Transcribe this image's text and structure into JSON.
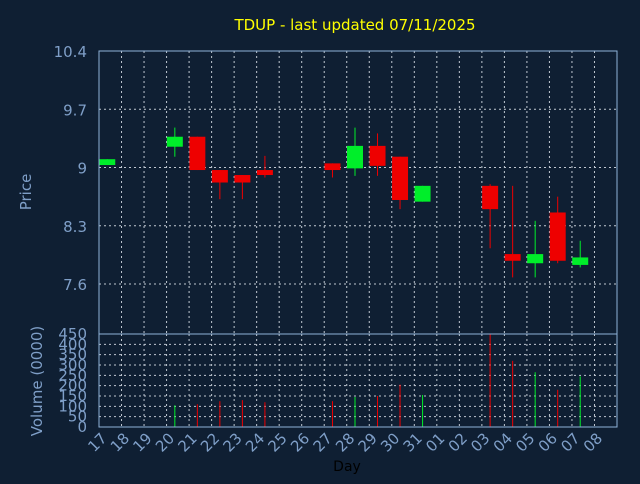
{
  "title": "TDUP - last updated 07/11/2025",
  "colors": {
    "background": "#0f1f33",
    "frame": "#8fb3d9",
    "grid": "#c0c8d2",
    "up": "#00ee2a",
    "down": "#ee0000",
    "title": "#ffff00",
    "axis_text": "#7f9fc8",
    "xlabel": "#000000"
  },
  "chart_data": {
    "type": "candlestick",
    "title": "TDUP - last updated 07/11/2025",
    "price_axis": {
      "label": "Price",
      "ylim": [
        7.0,
        10.4
      ],
      "ticks": [
        10.4,
        9.7,
        9,
        8.3,
        7.6
      ],
      "tick_labels": [
        "10.4",
        "9.7",
        "9",
        "8.3",
        "7.6"
      ]
    },
    "volume_axis": {
      "label": "Volume (0000)",
      "ylim": [
        0,
        450
      ],
      "ticks": [
        0,
        50,
        100,
        150,
        200,
        250,
        300,
        350,
        400,
        450
      ],
      "tick_labels": [
        "0",
        "50",
        "100",
        "150",
        "200",
        "250",
        "300",
        "350",
        "400",
        "450"
      ]
    },
    "x_axis": {
      "label": "Day",
      "tick_labels": [
        "17",
        "18",
        "19",
        "20",
        "21",
        "22",
        "23",
        "24",
        "25",
        "26",
        "27",
        "28",
        "29",
        "30",
        "31",
        "01",
        "02",
        "03",
        "04",
        "05",
        "06",
        "07",
        "08"
      ]
    },
    "candles": [
      {
        "day": "17",
        "open": 9.03,
        "close": 9.1,
        "high": 9.1,
        "low": 9.03,
        "volume": 0
      },
      {
        "day": "20",
        "open": 9.25,
        "close": 9.37,
        "high": 9.48,
        "low": 9.13,
        "volume": 105
      },
      {
        "day": "21",
        "open": 9.37,
        "close": 8.97,
        "high": 9.37,
        "low": 8.97,
        "volume": 110
      },
      {
        "day": "22",
        "open": 8.97,
        "close": 8.82,
        "high": 8.97,
        "low": 8.62,
        "volume": 125
      },
      {
        "day": "23",
        "open": 8.91,
        "close": 8.82,
        "high": 8.91,
        "low": 8.62,
        "volume": 130
      },
      {
        "day": "24",
        "open": 8.97,
        "close": 8.91,
        "high": 9.14,
        "low": 8.88,
        "volume": 120
      },
      {
        "day": "27",
        "open": 9.05,
        "close": 8.97,
        "high": 9.05,
        "low": 8.88,
        "volume": 125
      },
      {
        "day": "28",
        "open": 8.99,
        "close": 9.26,
        "high": 9.48,
        "low": 8.9,
        "volume": 145
      },
      {
        "day": "29",
        "open": 9.26,
        "close": 9.02,
        "high": 9.41,
        "low": 8.9,
        "volume": 150
      },
      {
        "day": "30",
        "open": 9.13,
        "close": 8.61,
        "high": 9.13,
        "low": 8.5,
        "volume": 205
      },
      {
        "day": "31",
        "open": 8.59,
        "close": 8.78,
        "high": 8.78,
        "low": 8.59,
        "volume": 155
      },
      {
        "day": "03",
        "open": 8.78,
        "close": 8.5,
        "high": 8.8,
        "low": 8.03,
        "volume": 450
      },
      {
        "day": "04",
        "open": 7.96,
        "close": 7.88,
        "high": 8.78,
        "low": 7.68,
        "volume": 320
      },
      {
        "day": "05",
        "open": 7.85,
        "close": 7.96,
        "high": 8.36,
        "low": 7.68,
        "volume": 265
      },
      {
        "day": "06",
        "open": 8.46,
        "close": 7.88,
        "high": 8.65,
        "low": 7.85,
        "volume": 180
      },
      {
        "day": "07",
        "open": 7.83,
        "close": 7.92,
        "high": 8.12,
        "low": 7.8,
        "volume": 245
      }
    ],
    "grid": true
  }
}
